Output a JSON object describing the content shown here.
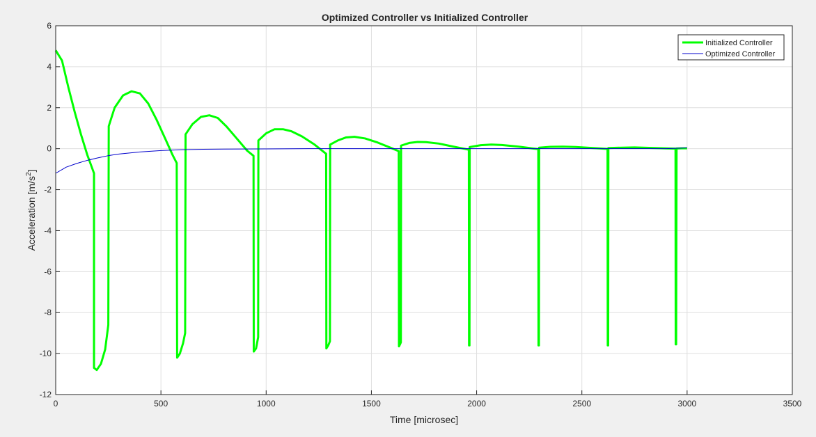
{
  "chart_data": {
    "type": "line",
    "title": "Optimized Controller vs Initialized Controller",
    "xlabel": "Time [microsec]",
    "ylabel": "Acceleration [m/s",
    "ylabel_sup": "2",
    "ylabel_close": "]",
    "xlim": [
      0,
      3500
    ],
    "ylim": [
      -12,
      6
    ],
    "xticks": [
      0,
      500,
      1000,
      1500,
      2000,
      2500,
      3000,
      3500
    ],
    "yticks": [
      -12,
      -10,
      -8,
      -6,
      -4,
      -2,
      0,
      2,
      4,
      6
    ],
    "grid": true,
    "legend_position": "top-right",
    "series": [
      {
        "name": "Initialized Controller",
        "color": "#00ff00",
        "line_width": "thick",
        "points": [
          [
            0,
            4.8
          ],
          [
            30,
            4.3
          ],
          [
            60,
            3.0
          ],
          [
            90,
            1.8
          ],
          [
            120,
            0.7
          ],
          [
            150,
            -0.3
          ],
          [
            182,
            -1.2
          ],
          [
            182,
            -10.7
          ],
          [
            195,
            -10.8
          ],
          [
            215,
            -10.5
          ],
          [
            235,
            -9.8
          ],
          [
            250,
            -8.6
          ],
          [
            252,
            1.1
          ],
          [
            280,
            2.0
          ],
          [
            320,
            2.6
          ],
          [
            360,
            2.8
          ],
          [
            400,
            2.7
          ],
          [
            440,
            2.2
          ],
          [
            480,
            1.4
          ],
          [
            520,
            0.5
          ],
          [
            555,
            -0.3
          ],
          [
            575,
            -0.7
          ],
          [
            577,
            -10.2
          ],
          [
            590,
            -10.0
          ],
          [
            605,
            -9.5
          ],
          [
            615,
            -9.0
          ],
          [
            617,
            0.7
          ],
          [
            650,
            1.2
          ],
          [
            690,
            1.55
          ],
          [
            730,
            1.63
          ],
          [
            770,
            1.5
          ],
          [
            810,
            1.1
          ],
          [
            860,
            0.5
          ],
          [
            910,
            -0.1
          ],
          [
            940,
            -0.35
          ],
          [
            941,
            -9.9
          ],
          [
            952,
            -9.75
          ],
          [
            962,
            -9.2
          ],
          [
            963,
            0.4
          ],
          [
            1000,
            0.75
          ],
          [
            1040,
            0.95
          ],
          [
            1080,
            0.95
          ],
          [
            1120,
            0.85
          ],
          [
            1170,
            0.6
          ],
          [
            1230,
            0.2
          ],
          [
            1285,
            -0.25
          ],
          [
            1286,
            -9.75
          ],
          [
            1295,
            -9.6
          ],
          [
            1303,
            -9.4
          ],
          [
            1304,
            0.2
          ],
          [
            1340,
            0.4
          ],
          [
            1380,
            0.55
          ],
          [
            1420,
            0.58
          ],
          [
            1470,
            0.5
          ],
          [
            1530,
            0.3
          ],
          [
            1590,
            0.05
          ],
          [
            1630,
            -0.12
          ],
          [
            1631,
            -9.65
          ],
          [
            1636,
            -9.55
          ],
          [
            1640,
            -9.45
          ],
          [
            1641,
            0.15
          ],
          [
            1680,
            0.28
          ],
          [
            1720,
            0.33
          ],
          [
            1760,
            0.32
          ],
          [
            1820,
            0.25
          ],
          [
            1890,
            0.1
          ],
          [
            1940,
            0.0
          ],
          [
            1963,
            -0.05
          ],
          [
            1964,
            -9.6
          ],
          [
            1966,
            -9.6
          ],
          [
            1967,
            0.08
          ],
          [
            2020,
            0.17
          ],
          [
            2070,
            0.2
          ],
          [
            2120,
            0.18
          ],
          [
            2200,
            0.1
          ],
          [
            2260,
            0.02
          ],
          [
            2293,
            -0.02
          ],
          [
            2294,
            -9.6
          ],
          [
            2296,
            -9.6
          ],
          [
            2297,
            0.05
          ],
          [
            2350,
            0.09
          ],
          [
            2410,
            0.1
          ],
          [
            2470,
            0.08
          ],
          [
            2540,
            0.04
          ],
          [
            2590,
            0.01
          ],
          [
            2622,
            -0.01
          ],
          [
            2623,
            -9.6
          ],
          [
            2625,
            -9.6
          ],
          [
            2626,
            0.03
          ],
          [
            2690,
            0.05
          ],
          [
            2750,
            0.06
          ],
          [
            2820,
            0.04
          ],
          [
            2890,
            0.02
          ],
          [
            2945,
            0.0
          ],
          [
            2946,
            -9.55
          ],
          [
            2948,
            -9.55
          ],
          [
            2950,
            0.01
          ],
          [
            2975,
            0.02
          ],
          [
            3000,
            0.02
          ]
        ]
      },
      {
        "name": "Optimized Controller",
        "color": "#0000cc",
        "line_width": "thin",
        "points": [
          [
            0,
            -1.2
          ],
          [
            50,
            -0.9
          ],
          [
            100,
            -0.72
          ],
          [
            150,
            -0.57
          ],
          [
            200,
            -0.45
          ],
          [
            250,
            -0.34
          ],
          [
            300,
            -0.26
          ],
          [
            400,
            -0.16
          ],
          [
            500,
            -0.09
          ],
          [
            600,
            -0.05
          ],
          [
            700,
            -0.03
          ],
          [
            800,
            -0.02
          ],
          [
            1000,
            -0.01
          ],
          [
            1200,
            0.0
          ],
          [
            1500,
            0.0
          ],
          [
            2000,
            0.0
          ],
          [
            2500,
            0.0
          ],
          [
            2900,
            0.0
          ],
          [
            3000,
            0.04
          ]
        ]
      }
    ]
  }
}
